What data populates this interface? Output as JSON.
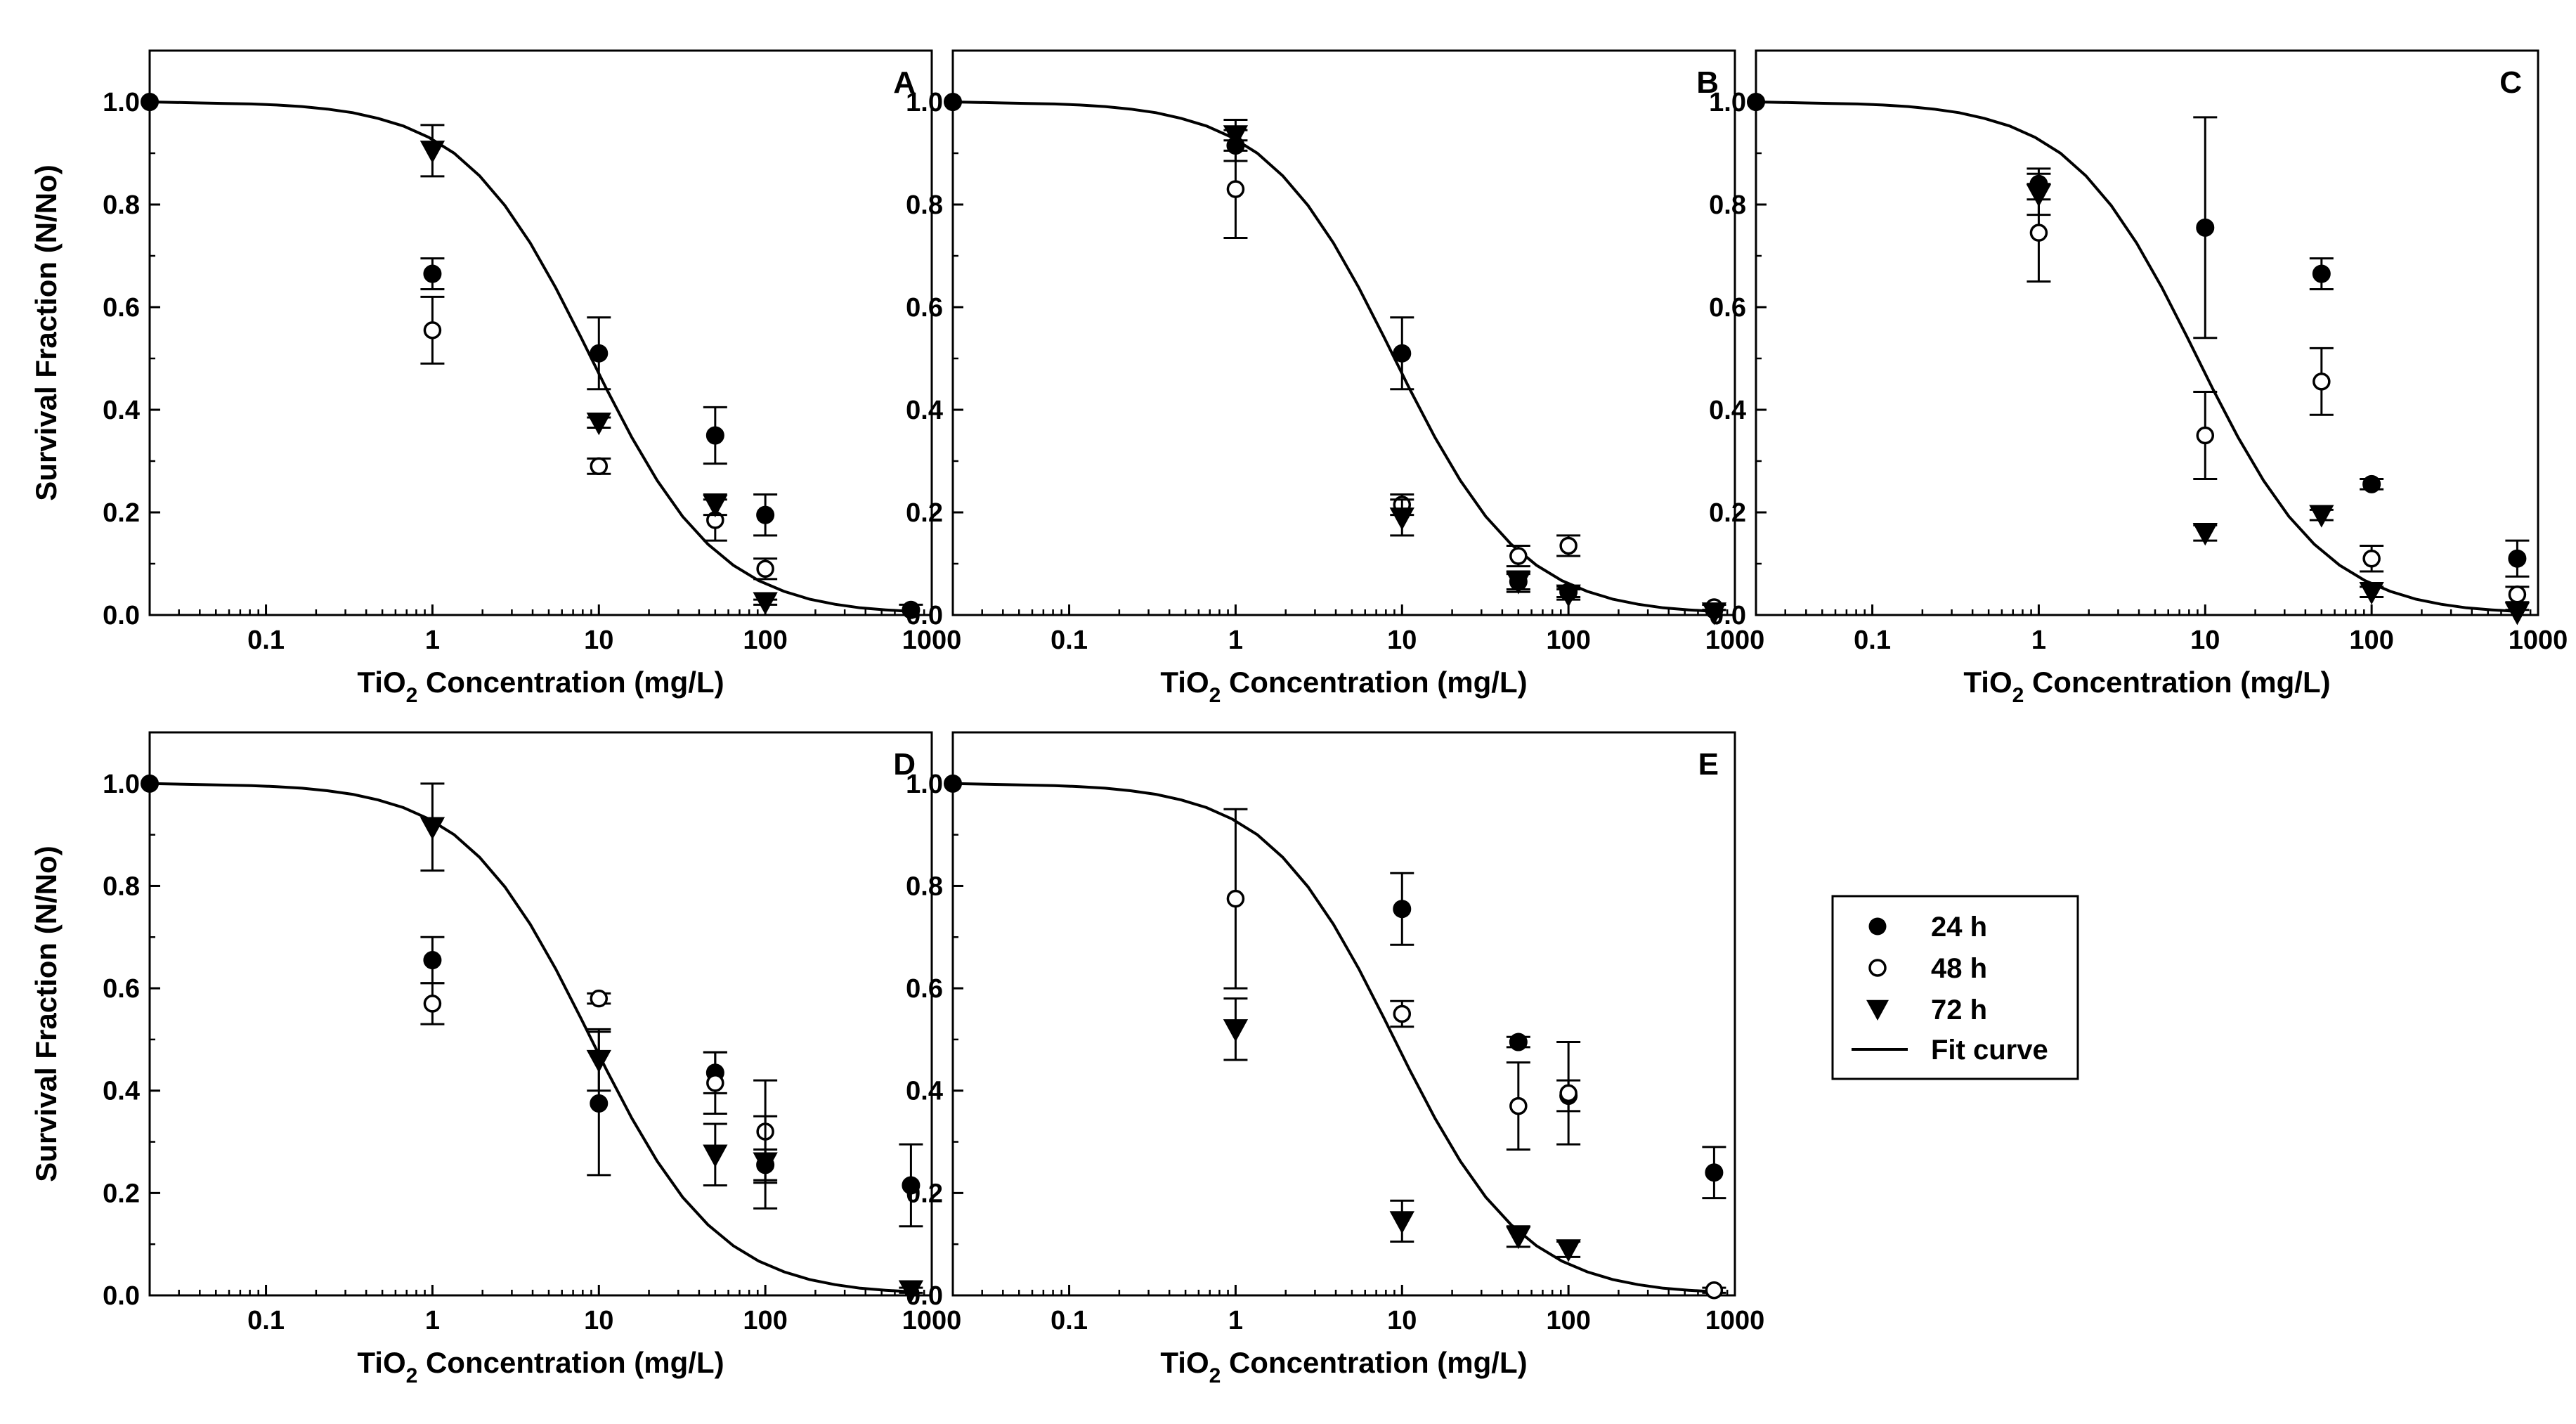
{
  "figure": {
    "y_axis_label": "Survival Fraction (N/No)",
    "x_axis_label_prefix": "TiO",
    "x_axis_label_sub": "2",
    "x_axis_label_suffix": " Concentration (mg/L)"
  },
  "legend": {
    "placement": "right of bottom row",
    "entries": [
      {
        "label": "24 h",
        "marker": "filled-circle"
      },
      {
        "label": "48 h",
        "marker": "open-circle"
      },
      {
        "label": "72 h",
        "marker": "filled-triangle-down"
      },
      {
        "label": "Fit curve",
        "marker": "line"
      }
    ]
  },
  "colors": {
    "ink": "#000000",
    "background": "#ffffff"
  },
  "chart_data": [
    {
      "panel": "A",
      "type": "scatter",
      "x_scale": "log",
      "xlim": [
        0.02,
        1000
      ],
      "ylim": [
        0,
        1.1
      ],
      "x_ticks": [
        "0.1",
        "1",
        "10",
        "100",
        "1000"
      ],
      "y_ticks": [
        "0.0",
        "0.2",
        "0.4",
        "0.6",
        "0.8",
        "1.0"
      ],
      "fit_curve": {
        "x0": 0.02,
        "x_end": 750,
        "y": [
          1.0,
          0.999,
          0.998,
          0.997,
          0.996,
          0.994,
          0.991,
          0.986,
          0.979,
          0.968,
          0.953,
          0.931,
          0.9,
          0.856,
          0.798,
          0.725,
          0.638,
          0.541,
          0.441,
          0.346,
          0.262,
          0.192,
          0.138,
          0.097,
          0.067,
          0.046,
          0.031,
          0.021,
          0.014,
          0.01,
          0.007
        ]
      },
      "series": [
        {
          "name": "24 h",
          "points": [
            {
              "x": 0.02,
              "y": 1.0,
              "err": 0
            },
            {
              "x": 1,
              "y": 0.665,
              "err": 0.03
            },
            {
              "x": 10,
              "y": 0.51,
              "err": 0.07
            },
            {
              "x": 50,
              "y": 0.35,
              "err": 0.055
            },
            {
              "x": 100,
              "y": 0.195,
              "err": 0.04
            },
            {
              "x": 750,
              "y": 0.01,
              "err": 0.01
            }
          ]
        },
        {
          "name": "48 h",
          "points": [
            {
              "x": 1,
              "y": 0.555,
              "err": 0.065
            },
            {
              "x": 10,
              "y": 0.29,
              "err": 0.015
            },
            {
              "x": 50,
              "y": 0.185,
              "err": 0.04
            },
            {
              "x": 100,
              "y": 0.09,
              "err": 0.02
            }
          ]
        },
        {
          "name": "72 h",
          "points": [
            {
              "x": 1,
              "y": 0.905,
              "err": 0.05
            },
            {
              "x": 10,
              "y": 0.375,
              "err": 0.01
            },
            {
              "x": 50,
              "y": 0.215,
              "err": 0.02
            },
            {
              "x": 100,
              "y": 0.025,
              "err": 0.005
            }
          ]
        }
      ]
    },
    {
      "panel": "B",
      "type": "scatter",
      "x_scale": "log",
      "xlim": [
        0.02,
        1000
      ],
      "ylim": [
        0,
        1.1
      ],
      "x_ticks": [
        "0.1",
        "1",
        "10",
        "100",
        "1000"
      ],
      "y_ticks": [
        "0.0",
        "0.2",
        "0.4",
        "0.6",
        "0.8",
        "1.0"
      ],
      "fit_curve": {
        "x0": 0.02,
        "x_end": 750,
        "y": [
          1.0,
          0.999,
          0.998,
          0.997,
          0.996,
          0.994,
          0.991,
          0.986,
          0.979,
          0.968,
          0.953,
          0.931,
          0.9,
          0.856,
          0.798,
          0.725,
          0.638,
          0.541,
          0.441,
          0.346,
          0.262,
          0.192,
          0.138,
          0.097,
          0.067,
          0.046,
          0.031,
          0.021,
          0.014,
          0.01,
          0.007
        ]
      },
      "series": [
        {
          "name": "24 h",
          "points": [
            {
              "x": 0.02,
              "y": 1.0,
              "err": 0
            },
            {
              "x": 1,
              "y": 0.915,
              "err": 0.03
            },
            {
              "x": 10,
              "y": 0.51,
              "err": 0.07
            },
            {
              "x": 50,
              "y": 0.065,
              "err": 0.015
            },
            {
              "x": 100,
              "y": 0.045,
              "err": 0.01
            },
            {
              "x": 750,
              "y": 0.01,
              "err": 0.01
            }
          ]
        },
        {
          "name": "48 h",
          "points": [
            {
              "x": 1,
              "y": 0.83,
              "err": 0.095
            },
            {
              "x": 10,
              "y": 0.215,
              "err": 0.02
            },
            {
              "x": 50,
              "y": 0.115,
              "err": 0.02
            },
            {
              "x": 100,
              "y": 0.135,
              "err": 0.02
            },
            {
              "x": 750,
              "y": 0.015,
              "err": 0.005
            }
          ]
        },
        {
          "name": "72 h",
          "points": [
            {
              "x": 1,
              "y": 0.935,
              "err": 0.03
            },
            {
              "x": 10,
              "y": 0.19,
              "err": 0.035
            },
            {
              "x": 50,
              "y": 0.065,
              "err": 0.02
            },
            {
              "x": 100,
              "y": 0.04,
              "err": 0.01
            },
            {
              "x": 750,
              "y": 0.005,
              "err": 0.005
            }
          ]
        }
      ]
    },
    {
      "panel": "C",
      "type": "scatter",
      "x_scale": "log",
      "xlim": [
        0.02,
        1000
      ],
      "ylim": [
        0,
        1.1
      ],
      "x_ticks": [
        "0.1",
        "1",
        "10",
        "100",
        "1000"
      ],
      "y_ticks": [
        "0.0",
        "0.2",
        "0.4",
        "0.6",
        "0.8",
        "1.0"
      ],
      "fit_curve": {
        "x0": 0.02,
        "x_end": 750,
        "y": [
          1.0,
          0.999,
          0.998,
          0.997,
          0.996,
          0.994,
          0.991,
          0.986,
          0.979,
          0.968,
          0.953,
          0.931,
          0.9,
          0.856,
          0.798,
          0.725,
          0.638,
          0.541,
          0.441,
          0.346,
          0.262,
          0.192,
          0.138,
          0.097,
          0.067,
          0.046,
          0.031,
          0.021,
          0.014,
          0.01,
          0.007
        ]
      },
      "series": [
        {
          "name": "24 h",
          "points": [
            {
              "x": 0.02,
              "y": 1.0,
              "err": 0
            },
            {
              "x": 1,
              "y": 0.84,
              "err": 0.03
            },
            {
              "x": 10,
              "y": 0.755,
              "err": 0.215
            },
            {
              "x": 50,
              "y": 0.665,
              "err": 0.03
            },
            {
              "x": 100,
              "y": 0.255,
              "err": 0.01
            },
            {
              "x": 750,
              "y": 0.11,
              "err": 0.035
            }
          ]
        },
        {
          "name": "48 h",
          "points": [
            {
              "x": 1,
              "y": 0.745,
              "err": 0.095
            },
            {
              "x": 10,
              "y": 0.35,
              "err": 0.085
            },
            {
              "x": 50,
              "y": 0.455,
              "err": 0.065
            },
            {
              "x": 100,
              "y": 0.11,
              "err": 0.025
            },
            {
              "x": 750,
              "y": 0.04,
              "err": 0.015
            }
          ]
        },
        {
          "name": "72 h",
          "points": [
            {
              "x": 1,
              "y": 0.82,
              "err": 0.04
            },
            {
              "x": 10,
              "y": 0.16,
              "err": 0.015
            },
            {
              "x": 50,
              "y": 0.195,
              "err": 0.01
            },
            {
              "x": 100,
              "y": 0.045,
              "err": 0.01
            },
            {
              "x": 750,
              "y": 0.005,
              "err": 0.005
            }
          ]
        }
      ]
    },
    {
      "panel": "D",
      "type": "scatter",
      "x_scale": "log",
      "xlim": [
        0.02,
        1000
      ],
      "ylim": [
        0,
        1.1
      ],
      "x_ticks": [
        "0.1",
        "1",
        "10",
        "100",
        "1000"
      ],
      "y_ticks": [
        "0.0",
        "0.2",
        "0.4",
        "0.6",
        "0.8",
        "1.0"
      ],
      "fit_curve": {
        "x0": 0.02,
        "x_end": 750,
        "y": [
          1.0,
          0.999,
          0.998,
          0.997,
          0.996,
          0.994,
          0.991,
          0.986,
          0.979,
          0.968,
          0.953,
          0.931,
          0.9,
          0.856,
          0.798,
          0.725,
          0.638,
          0.541,
          0.441,
          0.346,
          0.262,
          0.192,
          0.138,
          0.097,
          0.067,
          0.046,
          0.031,
          0.021,
          0.014,
          0.01,
          0.007
        ]
      },
      "series": [
        {
          "name": "24 h",
          "points": [
            {
              "x": 0.02,
              "y": 1.0,
              "err": 0
            },
            {
              "x": 1,
              "y": 0.655,
              "err": 0.045
            },
            {
              "x": 10,
              "y": 0.375,
              "err": 0.14
            },
            {
              "x": 50,
              "y": 0.435,
              "err": 0.04
            },
            {
              "x": 100,
              "y": 0.255,
              "err": 0.03
            },
            {
              "x": 750,
              "y": 0.215,
              "err": 0.08
            }
          ]
        },
        {
          "name": "48 h",
          "points": [
            {
              "x": 1,
              "y": 0.57,
              "err": 0.04
            },
            {
              "x": 10,
              "y": 0.58,
              "err": 0.01
            },
            {
              "x": 50,
              "y": 0.415,
              "err": 0.06
            },
            {
              "x": 100,
              "y": 0.32,
              "err": 0.1
            }
          ]
        },
        {
          "name": "72 h",
          "points": [
            {
              "x": 1,
              "y": 0.915,
              "err": 0.085
            },
            {
              "x": 10,
              "y": 0.46,
              "err": 0.06
            },
            {
              "x": 50,
              "y": 0.275,
              "err": 0.06
            },
            {
              "x": 100,
              "y": 0.26,
              "err": 0.09
            },
            {
              "x": 750,
              "y": 0.01,
              "err": 0.005
            }
          ]
        }
      ]
    },
    {
      "panel": "E",
      "type": "scatter",
      "x_scale": "log",
      "xlim": [
        0.02,
        1000
      ],
      "ylim": [
        0,
        1.1
      ],
      "x_ticks": [
        "0.1",
        "1",
        "10",
        "100",
        "1000"
      ],
      "y_ticks": [
        "0.0",
        "0.2",
        "0.4",
        "0.6",
        "0.8",
        "1.0"
      ],
      "fit_curve": {
        "x0": 0.02,
        "x_end": 750,
        "y": [
          1.0,
          0.999,
          0.998,
          0.997,
          0.996,
          0.994,
          0.991,
          0.986,
          0.979,
          0.968,
          0.953,
          0.931,
          0.9,
          0.856,
          0.798,
          0.725,
          0.638,
          0.541,
          0.441,
          0.346,
          0.262,
          0.192,
          0.138,
          0.097,
          0.067,
          0.046,
          0.031,
          0.021,
          0.014,
          0.01,
          0.007
        ]
      },
      "series": [
        {
          "name": "24 h",
          "points": [
            {
              "x": 0.02,
              "y": 1.0,
              "err": 0
            },
            {
              "x": 10,
              "y": 0.755,
              "err": 0.07
            },
            {
              "x": 50,
              "y": 0.495,
              "err": 0.01
            },
            {
              "x": 100,
              "y": 0.39,
              "err": 0.03
            },
            {
              "x": 750,
              "y": 0.24,
              "err": 0.05
            }
          ]
        },
        {
          "name": "48 h",
          "points": [
            {
              "x": 1,
              "y": 0.775,
              "err": 0.175
            },
            {
              "x": 10,
              "y": 0.55,
              "err": 0.025
            },
            {
              "x": 50,
              "y": 0.37,
              "err": 0.085
            },
            {
              "x": 100,
              "y": 0.395,
              "err": 0.1
            },
            {
              "x": 750,
              "y": 0.01,
              "err": 0.005
            }
          ]
        },
        {
          "name": "72 h",
          "points": [
            {
              "x": 1,
              "y": 0.52,
              "err": 0.06
            },
            {
              "x": 10,
              "y": 0.145,
              "err": 0.04
            },
            {
              "x": 50,
              "y": 0.115,
              "err": 0.02
            },
            {
              "x": 100,
              "y": 0.09,
              "err": 0.015
            }
          ]
        }
      ]
    }
  ]
}
